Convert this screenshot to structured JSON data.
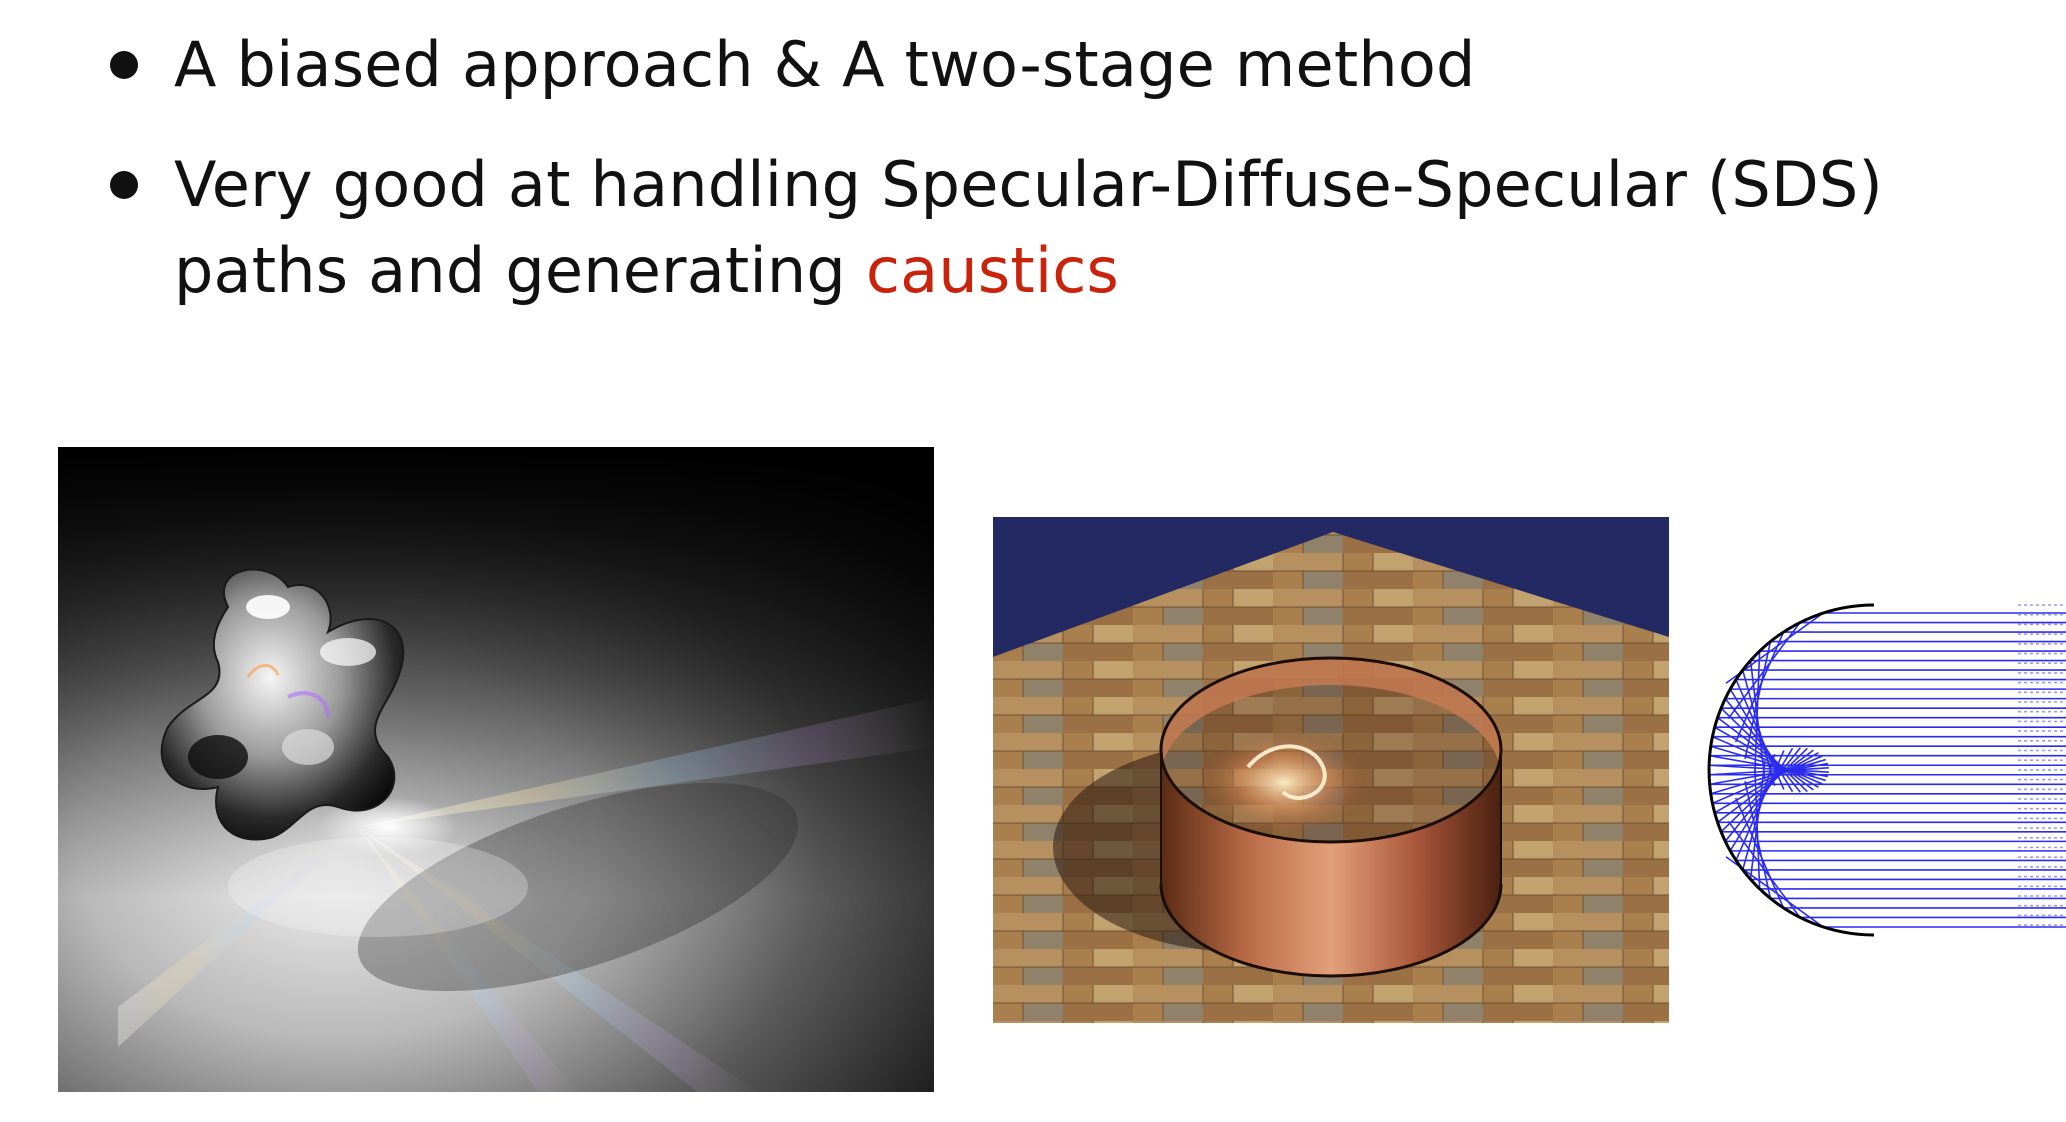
{
  "bullets": [
    {
      "text": "A biased approach & A two-stage method"
    },
    {
      "text_before": "Very good at handling Specular-Diffuse-Specular (SDS) paths and generating ",
      "highlight": "caustics",
      "highlight_color": "#c9230c"
    }
  ],
  "figures": [
    {
      "name": "caustic-blob-render",
      "background": "#101010"
    },
    {
      "name": "copper-ring-caustic-render",
      "background": "#232a63"
    },
    {
      "name": "ring-reflection-ray-diagram",
      "ray_color": "#2b2bf0"
    }
  ]
}
